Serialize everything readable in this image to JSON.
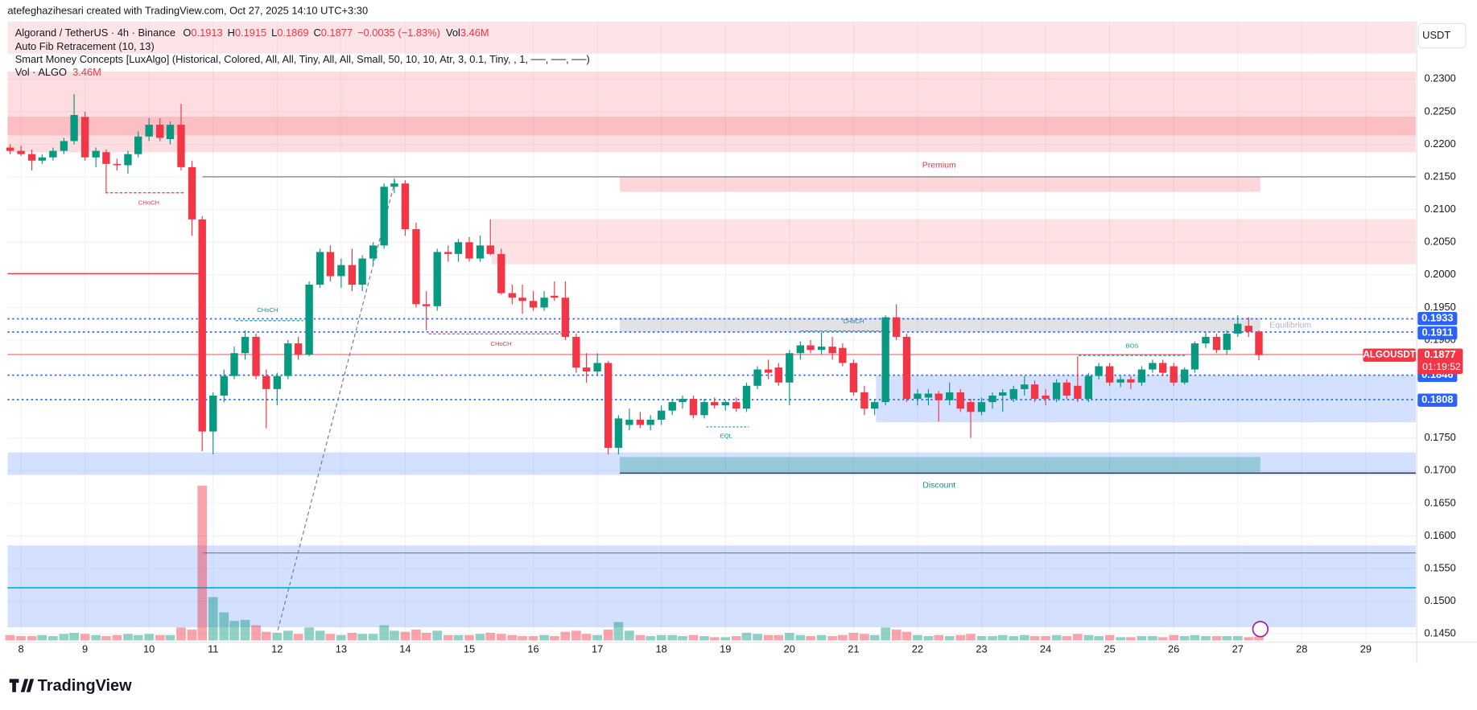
{
  "header": "atefeghazihesari created with TradingView.com, Oct 27, 2025 14:10 UTC+3:30",
  "logo": "TradingView",
  "chart_data": {
    "type": "candlestick",
    "legend": {
      "symbol": "Algorand / TetherUS · 4h · Binance",
      "ohlc": [
        {
          "key": "O",
          "value": 0.1913
        },
        {
          "key": "H",
          "value": 0.1915
        },
        {
          "key": "L",
          "value": 0.1869
        },
        {
          "key": "C",
          "value": 0.1877
        }
      ],
      "change": "−0.0035 (−1.83%)",
      "vol_key": "Vol",
      "vol_value": "3.46M"
    },
    "indicators": [
      "Auto Fib Retracement (10, 13)",
      "Smart Money Concepts [LuxAlgo] (Historical, Colored, All, All, Tiny, All, All, Small, 50, 10, 10, Atr, 3, 0.1, Tiny, , 1, ──, ──, ──)"
    ],
    "vol_row": {
      "name": "Vol · ALGO",
      "value": "3.46M"
    },
    "currency": "USDT",
    "up_color": "#089981",
    "down_color": "#f23645",
    "xlim": [
      7.79,
      29.78
    ],
    "ylim": [
      0.1437,
      0.2388
    ],
    "xticks": [
      8,
      9,
      10,
      11,
      12,
      13,
      14,
      15,
      16,
      17,
      18,
      19,
      20,
      21,
      22,
      23,
      24,
      25,
      26,
      27,
      28,
      29
    ],
    "yticks": [
      {
        "value": 0.23,
        "label": "0.2300"
      },
      {
        "value": 0.225,
        "label": "0.2250"
      },
      {
        "value": 0.22,
        "label": "0.2200"
      },
      {
        "value": 0.215,
        "label": "0.2150"
      },
      {
        "value": 0.21,
        "label": "0.2100"
      },
      {
        "value": 0.205,
        "label": "0.2050"
      },
      {
        "value": 0.2,
        "label": "0.2000"
      },
      {
        "value": 0.195,
        "label": "0.1950"
      },
      {
        "value": 0.19,
        "label": "0.1900"
      },
      {
        "value": 0.175,
        "label": "0.1750"
      },
      {
        "value": 0.17,
        "label": "0.1700"
      },
      {
        "value": 0.165,
        "label": "0.1650"
      },
      {
        "value": 0.16,
        "label": "0.1600"
      },
      {
        "value": 0.155,
        "label": "0.1550"
      },
      {
        "value": 0.15,
        "label": "0.1500"
      },
      {
        "value": 0.145,
        "label": "0.1450"
      }
    ],
    "grid": true,
    "price_tags": [
      0.1933,
      0.1911,
      0.1846,
      0.1808
    ],
    "last_price": 0.1877,
    "symbol_tag": "ALGOUSDT",
    "countdown": "01:19:52",
    "annotations": [
      "Premium",
      "Discount",
      "Equilibrium",
      "CHoCH",
      "CHoCH",
      "CHoCH",
      "CHoCH",
      "BOS",
      "EQL"
    ],
    "x": [
      7.83,
      8,
      8.17,
      8.33,
      8.5,
      8.67,
      8.83,
      9,
      9.17,
      9.33,
      9.5,
      9.67,
      9.83,
      10,
      10.17,
      10.33,
      10.5,
      10.67,
      10.83,
      11,
      11.17,
      11.33,
      11.5,
      11.67,
      11.83,
      12,
      12.17,
      12.33,
      12.5,
      12.67,
      12.83,
      13,
      13.17,
      13.33,
      13.5,
      13.67,
      13.83,
      14,
      14.17,
      14.33,
      14.5,
      14.67,
      14.83,
      15,
      15.17,
      15.33,
      15.5,
      15.67,
      15.83,
      16,
      16.17,
      16.33,
      16.5,
      16.67,
      16.83,
      17,
      17.17,
      17.33,
      17.5,
      17.67,
      17.83,
      18,
      18.17,
      18.33,
      18.5,
      18.67,
      18.83,
      19,
      19.17,
      19.33,
      19.5,
      19.67,
      19.83,
      20,
      20.17,
      20.33,
      20.5,
      20.67,
      20.83,
      21,
      21.17,
      21.33,
      21.5,
      21.67,
      21.83,
      22,
      22.17,
      22.33,
      22.5,
      22.67,
      22.83,
      23,
      23.17,
      23.33,
      23.5,
      23.67,
      23.83,
      24,
      24.17,
      24.33,
      24.5,
      24.67,
      24.83,
      25,
      25.17,
      25.33,
      25.5,
      25.67,
      25.83,
      26,
      26.17,
      26.33,
      26.5,
      26.67,
      26.83,
      27,
      27.17,
      27.33
    ],
    "candles": [
      [
        0.2195,
        0.22,
        0.2185,
        0.219
      ],
      [
        0.219,
        0.2198,
        0.2182,
        0.2185
      ],
      [
        0.2185,
        0.2192,
        0.216,
        0.2175
      ],
      [
        0.2175,
        0.2185,
        0.217,
        0.218
      ],
      [
        0.218,
        0.2195,
        0.2175,
        0.219
      ],
      [
        0.219,
        0.221,
        0.2185,
        0.2205
      ],
      [
        0.2205,
        0.2277,
        0.22,
        0.2245
      ],
      [
        0.2242,
        0.225,
        0.2175,
        0.218
      ],
      [
        0.218,
        0.2195,
        0.2165,
        0.219
      ],
      [
        0.2188,
        0.2192,
        0.2125,
        0.217
      ],
      [
        0.217,
        0.2178,
        0.216,
        0.2168
      ],
      [
        0.2168,
        0.219,
        0.2155,
        0.2185
      ],
      [
        0.2185,
        0.222,
        0.218,
        0.2212
      ],
      [
        0.2212,
        0.224,
        0.2205,
        0.223
      ],
      [
        0.223,
        0.224,
        0.2205,
        0.221
      ],
      [
        0.2208,
        0.2235,
        0.22,
        0.223
      ],
      [
        0.223,
        0.2262,
        0.216,
        0.2165
      ],
      [
        0.2165,
        0.2175,
        0.206,
        0.2085
      ],
      [
        0.2085,
        0.209,
        0.173,
        0.176
      ],
      [
        0.176,
        0.182,
        0.1725,
        0.1815
      ],
      [
        0.1815,
        0.1855,
        0.1805,
        0.1845
      ],
      [
        0.1845,
        0.189,
        0.184,
        0.188
      ],
      [
        0.188,
        0.1915,
        0.187,
        0.1905
      ],
      [
        0.1905,
        0.191,
        0.184,
        0.1845
      ],
      [
        0.1845,
        0.1855,
        0.1765,
        0.1825
      ],
      [
        0.1825,
        0.185,
        0.18,
        0.1845
      ],
      [
        0.1845,
        0.19,
        0.184,
        0.1895
      ],
      [
        0.1895,
        0.1905,
        0.187,
        0.1878
      ],
      [
        0.1878,
        0.199,
        0.1875,
        0.1985
      ],
      [
        0.1985,
        0.204,
        0.198,
        0.2035
      ],
      [
        0.2035,
        0.2045,
        0.199,
        0.1998
      ],
      [
        0.1998,
        0.2025,
        0.198,
        0.2015
      ],
      [
        0.2015,
        0.204,
        0.1975,
        0.1985
      ],
      [
        0.1985,
        0.203,
        0.1975,
        0.2025
      ],
      [
        0.2025,
        0.205,
        0.2015,
        0.2045
      ],
      [
        0.2045,
        0.214,
        0.204,
        0.2135
      ],
      [
        0.2135,
        0.2148,
        0.2125,
        0.214
      ],
      [
        0.214,
        0.2145,
        0.206,
        0.207
      ],
      [
        0.207,
        0.208,
        0.195,
        0.1955
      ],
      [
        0.1955,
        0.1975,
        0.1915,
        0.1952
      ],
      [
        0.1952,
        0.204,
        0.1945,
        0.2035
      ],
      [
        0.2035,
        0.2045,
        0.202,
        0.2032
      ],
      [
        0.2032,
        0.2055,
        0.202,
        0.205
      ],
      [
        0.205,
        0.2058,
        0.202,
        0.2025
      ],
      [
        0.2025,
        0.206,
        0.202,
        0.2045
      ],
      [
        0.2045,
        0.2085,
        0.203,
        0.2032
      ],
      [
        0.2032,
        0.204,
        0.197,
        0.1972
      ],
      [
        0.1972,
        0.1985,
        0.1955,
        0.1965
      ],
      [
        0.1965,
        0.1985,
        0.194,
        0.196
      ],
      [
        0.196,
        0.1975,
        0.1945,
        0.195
      ],
      [
        0.195,
        0.1975,
        0.1945,
        0.1965
      ],
      [
        0.1968,
        0.199,
        0.196,
        0.1965
      ],
      [
        0.1965,
        0.199,
        0.19,
        0.1905
      ],
      [
        0.1905,
        0.191,
        0.185,
        0.1858
      ],
      [
        0.1858,
        0.188,
        0.1835,
        0.1852
      ],
      [
        0.1852,
        0.188,
        0.1845,
        0.1865
      ],
      [
        0.1865,
        0.1868,
        0.1725,
        0.1735
      ],
      [
        0.1735,
        0.1785,
        0.1725,
        0.178
      ],
      [
        0.177,
        0.1795,
        0.1762,
        0.1778
      ],
      [
        0.1778,
        0.179,
        0.1765,
        0.177
      ],
      [
        0.177,
        0.1785,
        0.1762,
        0.1778
      ],
      [
        0.1778,
        0.18,
        0.177,
        0.1792
      ],
      [
        0.1792,
        0.181,
        0.1785,
        0.1805
      ],
      [
        0.1805,
        0.1815,
        0.1795,
        0.181
      ],
      [
        0.181,
        0.1815,
        0.178,
        0.1785
      ],
      [
        0.1785,
        0.181,
        0.178,
        0.1805
      ],
      [
        0.1805,
        0.1812,
        0.1795,
        0.18
      ],
      [
        0.18,
        0.1808,
        0.1792,
        0.1805
      ],
      [
        0.1805,
        0.1812,
        0.179,
        0.1795
      ],
      [
        0.1795,
        0.1835,
        0.179,
        0.183
      ],
      [
        0.183,
        0.186,
        0.1825,
        0.1855
      ],
      [
        0.1855,
        0.187,
        0.184,
        0.185
      ],
      [
        0.1858,
        0.1865,
        0.183,
        0.1835
      ],
      [
        0.1835,
        0.1885,
        0.18,
        0.188
      ],
      [
        0.188,
        0.1898,
        0.187,
        0.1892
      ],
      [
        0.1892,
        0.19,
        0.188,
        0.1885
      ],
      [
        0.1885,
        0.1912,
        0.1878,
        0.189
      ],
      [
        0.189,
        0.1905,
        0.187,
        0.188
      ],
      [
        0.1888,
        0.1895,
        0.186,
        0.1865
      ],
      [
        0.1865,
        0.187,
        0.1815,
        0.182
      ],
      [
        0.182,
        0.183,
        0.1785,
        0.1795
      ],
      [
        0.1795,
        0.181,
        0.1785,
        0.1805
      ],
      [
        0.1805,
        0.1938,
        0.18,
        0.1935
      ],
      [
        0.1935,
        0.1955,
        0.19,
        0.1905
      ],
      [
        0.1905,
        0.191,
        0.1805,
        0.181
      ],
      [
        0.181,
        0.1825,
        0.18,
        0.1818
      ],
      [
        0.1812,
        0.1825,
        0.18,
        0.1818
      ],
      [
        0.1818,
        0.1822,
        0.1775,
        0.1808
      ],
      [
        0.1808,
        0.1835,
        0.18,
        0.182
      ],
      [
        0.182,
        0.1825,
        0.179,
        0.1795
      ],
      [
        0.1805,
        0.181,
        0.175,
        0.179
      ],
      [
        0.179,
        0.1812,
        0.1785,
        0.1805
      ],
      [
        0.1805,
        0.182,
        0.1795,
        0.1815
      ],
      [
        0.1815,
        0.1825,
        0.179,
        0.182
      ],
      [
        0.181,
        0.183,
        0.1805,
        0.1825
      ],
      [
        0.1825,
        0.1845,
        0.1815,
        0.1832
      ],
      [
        0.1832,
        0.1838,
        0.1805,
        0.181
      ],
      [
        0.1815,
        0.1825,
        0.18,
        0.181
      ],
      [
        0.181,
        0.184,
        0.1805,
        0.1835
      ],
      [
        0.1835,
        0.184,
        0.181,
        0.1815
      ],
      [
        0.183,
        0.1875,
        0.1805,
        0.181
      ],
      [
        0.181,
        0.185,
        0.1805,
        0.1845
      ],
      [
        0.1845,
        0.1865,
        0.184,
        0.186
      ],
      [
        0.186,
        0.1865,
        0.183,
        0.1835
      ],
      [
        0.1835,
        0.1845,
        0.1828,
        0.184
      ],
      [
        0.184,
        0.1845,
        0.1825,
        0.1835
      ],
      [
        0.1835,
        0.186,
        0.183,
        0.1855
      ],
      [
        0.1855,
        0.187,
        0.185,
        0.1865
      ],
      [
        0.1865,
        0.187,
        0.1845,
        0.185
      ],
      [
        0.186,
        0.1865,
        0.183,
        0.1835
      ],
      [
        0.1835,
        0.1858,
        0.1832,
        0.1855
      ],
      [
        0.1855,
        0.1898,
        0.185,
        0.1895
      ],
      [
        0.1895,
        0.1912,
        0.1888,
        0.1905
      ],
      [
        0.1905,
        0.191,
        0.188,
        0.1885
      ],
      [
        0.1885,
        0.1915,
        0.1878,
        0.191
      ],
      [
        0.191,
        0.1938,
        0.1905,
        0.1925
      ],
      [
        0.1922,
        0.1935,
        0.1905,
        0.1913
      ],
      [
        0.1913,
        0.1915,
        0.1869,
        0.1877
      ]
    ],
    "volume": [
      5,
      4,
      4,
      5,
      4,
      6,
      7,
      6,
      5,
      4,
      5,
      6,
      5,
      6,
      5,
      5,
      12,
      10,
      143,
      40,
      26,
      18,
      19,
      14,
      8,
      7,
      9,
      6,
      12,
      9,
      6,
      5,
      7,
      6,
      6,
      14,
      9,
      8,
      10,
      7,
      9,
      5,
      5,
      5,
      6,
      7,
      6,
      5,
      4,
      4,
      5,
      4,
      8,
      9,
      6,
      5,
      10,
      17,
      9,
      5,
      4,
      5,
      5,
      4,
      5,
      4,
      3,
      3,
      4,
      7,
      6,
      5,
      5,
      7,
      5,
      4,
      5,
      4,
      5,
      7,
      6,
      5,
      12,
      10,
      8,
      5,
      4,
      5,
      4,
      5,
      6,
      4,
      4,
      5,
      4,
      5,
      4,
      4,
      5,
      4,
      6,
      5,
      4,
      5,
      3,
      3,
      4,
      4,
      3,
      5,
      4,
      5,
      4,
      4,
      4,
      4,
      3,
      3.46
    ]
  }
}
